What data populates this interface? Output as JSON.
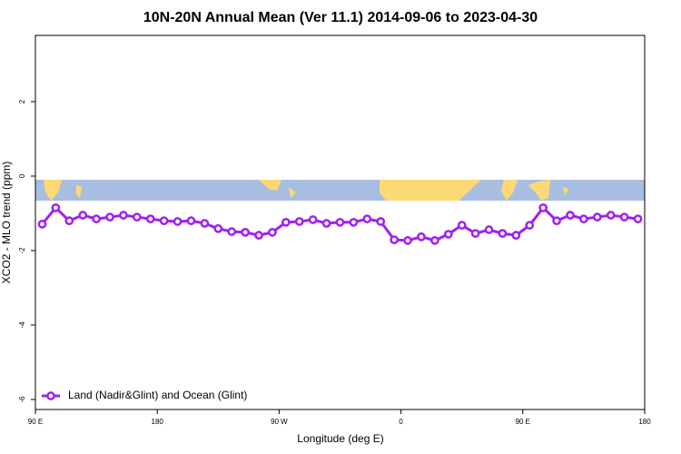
{
  "chart_data": {
    "type": "line",
    "title": "10N-20N Annual Mean (Ver 11.1)   2014-09-06 to 2023-04-30",
    "x_label": "Longitude (deg E)",
    "y_label": "XCO2 - MLO trend (ppm)",
    "x": [
      95,
      105,
      115,
      125,
      135,
      145,
      155,
      165,
      175,
      185,
      195,
      205,
      215,
      225,
      235,
      245,
      255,
      265,
      275,
      285,
      295,
      305,
      315,
      325,
      335,
      345,
      355,
      365,
      375,
      385,
      395,
      405,
      415,
      425,
      435,
      445,
      455,
      465,
      475,
      485,
      495,
      505,
      515,
      525,
      535
    ],
    "series": [
      {
        "name": "Land (Nadir&Glint) and Ocean (Glint)",
        "color": "#a020f0",
        "values": [
          -1.29,
          -0.85,
          -1.2,
          -1.05,
          -1.15,
          -1.1,
          -1.05,
          -1.1,
          -1.15,
          -1.2,
          -1.22,
          -1.2,
          -1.27,
          -1.41,
          -1.49,
          -1.51,
          -1.59,
          -1.51,
          -1.24,
          -1.22,
          -1.17,
          -1.27,
          -1.24,
          -1.24,
          -1.15,
          -1.22,
          -1.71,
          -1.73,
          -1.63,
          -1.73,
          -1.56,
          -1.32,
          -1.54,
          -1.44,
          -1.54,
          -1.59,
          -1.32,
          -0.85,
          -1.2,
          -1.05,
          -1.15,
          -1.1,
          -1.05,
          -1.1,
          -1.15
        ]
      }
    ],
    "xlim": [
      90,
      540
    ],
    "xticks": [
      {
        "value": 90,
        "label": "90 E"
      },
      {
        "value": 180,
        "label": "180"
      },
      {
        "value": 270,
        "label": "90 W"
      },
      {
        "value": 360,
        "label": "0"
      },
      {
        "value": 450,
        "label": "90 E"
      },
      {
        "value": 540,
        "label": "180"
      }
    ],
    "ylim": [
      -6.27,
      3.78
    ],
    "yticks": [
      -6,
      -4,
      -2,
      0,
      2
    ],
    "legend": "bottom-left"
  }
}
